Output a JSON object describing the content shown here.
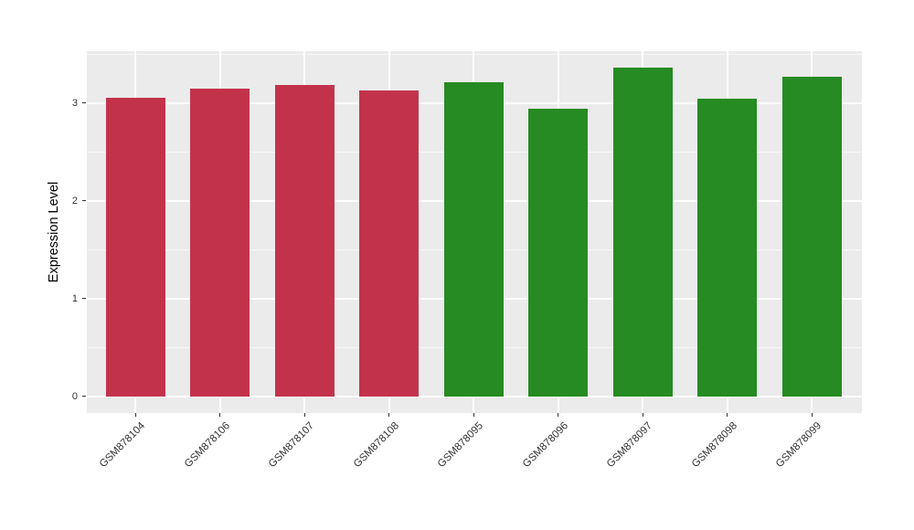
{
  "chart_data": {
    "type": "bar",
    "title": "",
    "xlabel": "",
    "ylabel": "Expression Level",
    "categories": [
      "GSM878104",
      "GSM878106",
      "GSM878107",
      "GSM878108",
      "GSM878095",
      "GSM878096",
      "GSM878097",
      "GSM878098",
      "GSM878099"
    ],
    "values": [
      3.05,
      3.15,
      3.18,
      3.13,
      3.21,
      2.94,
      3.36,
      3.04,
      3.27
    ],
    "groups": [
      "red",
      "red",
      "red",
      "red",
      "green",
      "green",
      "green",
      "green",
      "green"
    ],
    "group_colors": {
      "red": "#C2334B",
      "green": "#268B22"
    },
    "y_ticks": [
      0,
      1,
      2,
      3
    ],
    "y_minor_ticks": [
      0.5,
      1.5,
      2.5,
      3.5
    ],
    "ylim": [
      -0.17,
      3.53
    ],
    "legend": "none",
    "grid": "on",
    "panel_bg": "#EBEBEB",
    "grid_color": "#FFFFFF",
    "tick_text_color": "#333333",
    "x_label_rotation_deg": 45
  }
}
